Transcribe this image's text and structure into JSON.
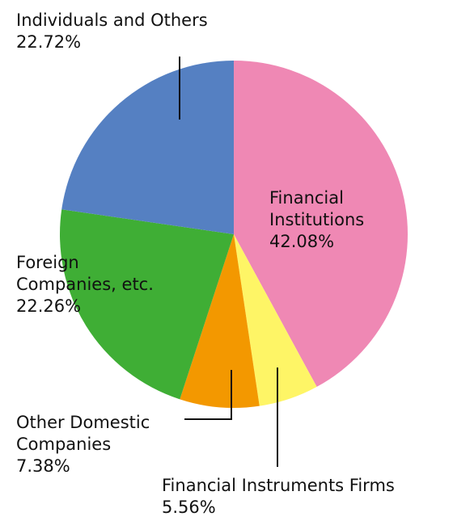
{
  "chart_data": {
    "type": "pie",
    "categories": [
      "Financial\nInstitutions",
      "Financial Instruments Firms",
      "Other Domestic\nCompanies",
      "Foreign\nCompanies, etc.",
      "Individuals and Others"
    ],
    "values": [
      42.08,
      5.56,
      7.38,
      22.26,
      22.72
    ],
    "value_labels": [
      "42.08%",
      "5.56%",
      "7.38%",
      "22.26%",
      "22.72%"
    ],
    "colors": [
      "#ef88b4",
      "#fef566",
      "#f39800",
      "#3fae35",
      "#5580c2"
    ]
  }
}
